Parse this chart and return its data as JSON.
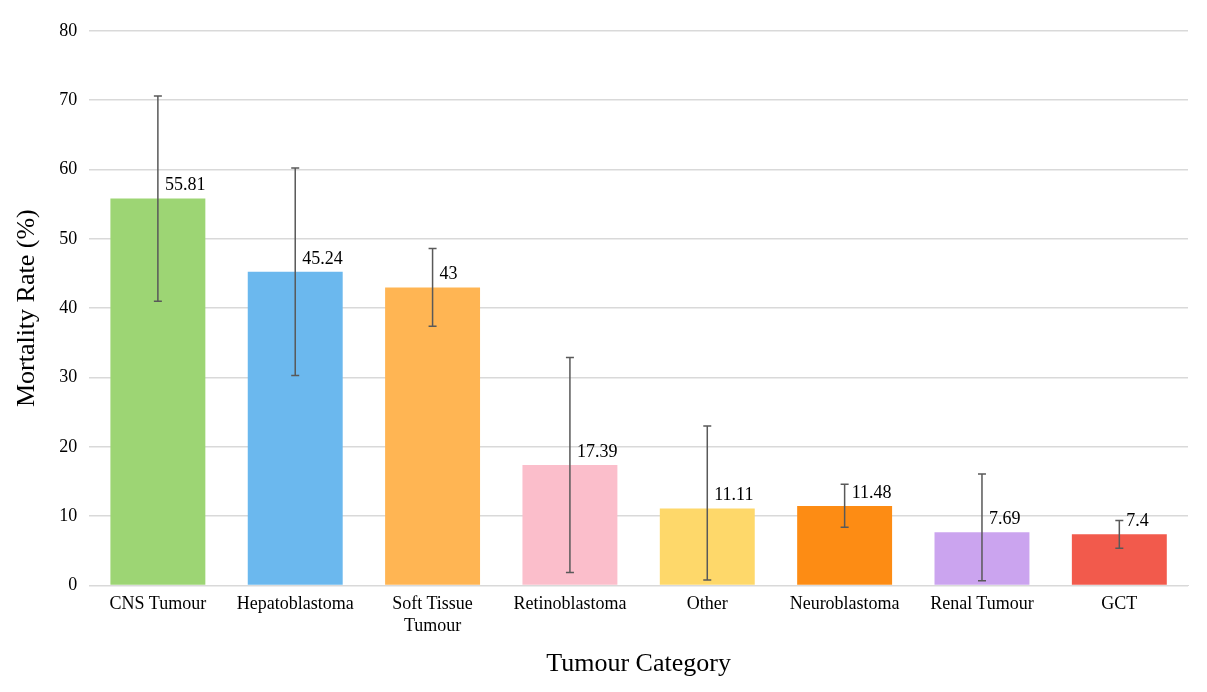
{
  "chart_data": {
    "type": "bar",
    "xlabel": "Tumour Category",
    "ylabel": "Mortality Rate (%)",
    "categories": [
      "CNS Tumour",
      "Hepatoblastoma",
      "Soft Tissue Tumour",
      "Retinoblastoma",
      "Other",
      "Neuroblastoma",
      "Renal Tumour",
      "GCT"
    ],
    "values": [
      55.81,
      45.24,
      43,
      17.39,
      11.11,
      11.48,
      7.69,
      7.4
    ],
    "colors": [
      "#9dd574",
      "#6bb8ee",
      "#ffb553",
      "#fbbecb",
      "#fed86a",
      "#fd8c14",
      "#cba4ef",
      "#f25a4c"
    ],
    "errors": [
      [
        41.0,
        70.6
      ],
      [
        30.3,
        60.2
      ],
      [
        37.4,
        48.6
      ],
      [
        1.9,
        32.9
      ],
      [
        0.8,
        23.0
      ],
      [
        8.4,
        14.6
      ],
      [
        0.7,
        16.1
      ],
      [
        5.4,
        9.4
      ]
    ],
    "data_labels": true,
    "ylim": [
      0,
      80
    ],
    "yticks": [
      0,
      10,
      20,
      30,
      40,
      50,
      60,
      70,
      80
    ],
    "grid": "y",
    "legend": false
  }
}
